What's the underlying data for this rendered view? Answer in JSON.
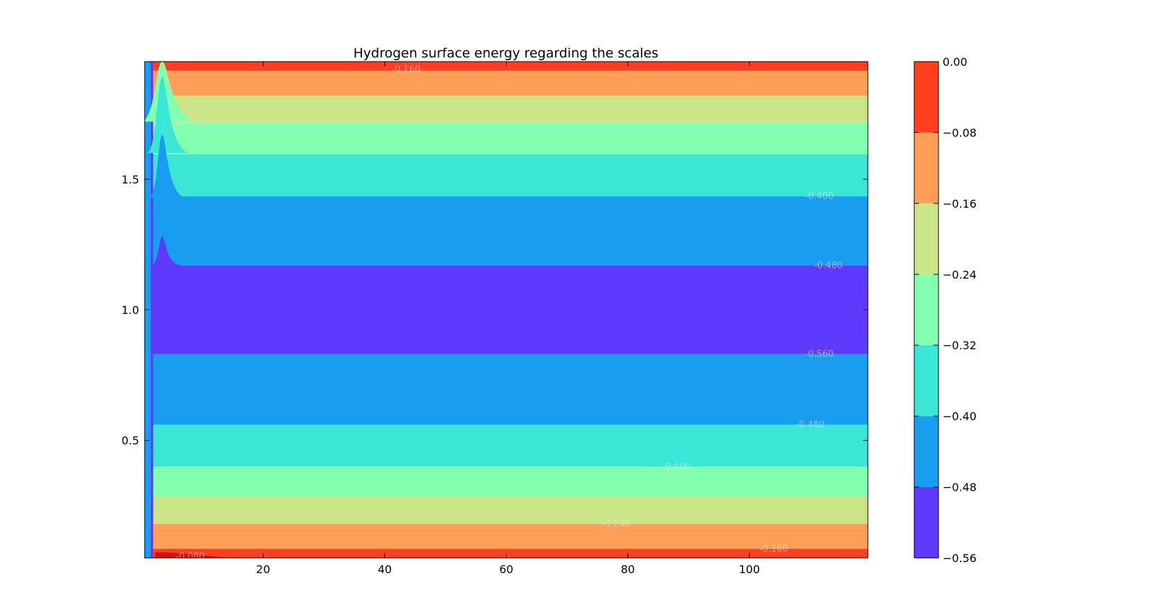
{
  "chart_data": {
    "type": "contourf",
    "title": "Hydrogen surface energy regarding the scales",
    "xlabel": "",
    "ylabel": "",
    "xlim": [
      0.5,
      119.5
    ],
    "ylim": [
      0.05,
      1.95
    ],
    "x_ticks": [
      20,
      40,
      60,
      80,
      100
    ],
    "y_ticks": [
      0.5,
      1.0,
      1.5
    ],
    "grid": false,
    "colorbar": {
      "position": "right",
      "levels": [
        -0.56,
        -0.48,
        -0.4,
        -0.32,
        -0.24,
        -0.16,
        -0.08,
        0.0
      ],
      "tick_labels": [
        "−0.56",
        "−0.48",
        "−0.40",
        "−0.32",
        "−0.24",
        "−0.16",
        "−0.08",
        "0.00"
      ],
      "colors": [
        "#5e3aff",
        "#189df0",
        "#3ae6d6",
        "#83ffb0",
        "#cbe488",
        "#ff9e56",
        "#ff3f1f"
      ]
    },
    "bands": [
      {
        "y_from": 0.05,
        "y_to": 0.085,
        "level_low": -0.08,
        "level_high": 0.0
      },
      {
        "y_from": 0.085,
        "y_to": 0.18,
        "level_low": -0.16,
        "level_high": -0.08
      },
      {
        "y_from": 0.18,
        "y_to": 0.285,
        "level_low": -0.24,
        "level_high": -0.16
      },
      {
        "y_from": 0.285,
        "y_to": 0.4,
        "level_low": -0.32,
        "level_high": -0.24
      },
      {
        "y_from": 0.4,
        "y_to": 0.56,
        "level_low": -0.4,
        "level_high": -0.32
      },
      {
        "y_from": 0.56,
        "y_to": 0.83,
        "level_low": -0.48,
        "level_high": -0.4
      },
      {
        "y_from": 0.83,
        "y_to": 1.17,
        "level_low": -0.56,
        "level_high": -0.48
      },
      {
        "y_from": 1.17,
        "y_to": 1.435,
        "level_low": -0.48,
        "level_high": -0.4
      },
      {
        "y_from": 1.435,
        "y_to": 1.595,
        "level_low": -0.4,
        "level_high": -0.32
      },
      {
        "y_from": 1.595,
        "y_to": 1.715,
        "level_low": -0.32,
        "level_high": -0.24
      },
      {
        "y_from": 1.715,
        "y_to": 1.82,
        "level_low": -0.24,
        "level_high": -0.16
      },
      {
        "y_from": 1.82,
        "y_to": 1.915,
        "level_low": -0.16,
        "level_high": -0.08
      },
      {
        "y_from": 1.915,
        "y_to": 1.95,
        "level_low": -0.08,
        "level_high": 0.0
      }
    ],
    "contour_labels": [
      {
        "text": "-0.160",
        "x": 43.5,
        "y": 1.92
      },
      {
        "text": "-0.400",
        "x": 111.5,
        "y": 1.435
      },
      {
        "text": "-0.480",
        "x": 113,
        "y": 1.17
      },
      {
        "text": "-0.560",
        "x": 111.5,
        "y": 0.83
      },
      {
        "text": "-0.480",
        "x": 110,
        "y": 0.56
      },
      {
        "text": "-0.400",
        "x": 88,
        "y": 0.4
      },
      {
        "text": "-0.240",
        "x": 78,
        "y": 0.18
      },
      {
        "text": "-0.160",
        "x": 104,
        "y": 0.085
      },
      {
        "text": "-0.080",
        "x": 8,
        "y": 0.055
      }
    ]
  }
}
